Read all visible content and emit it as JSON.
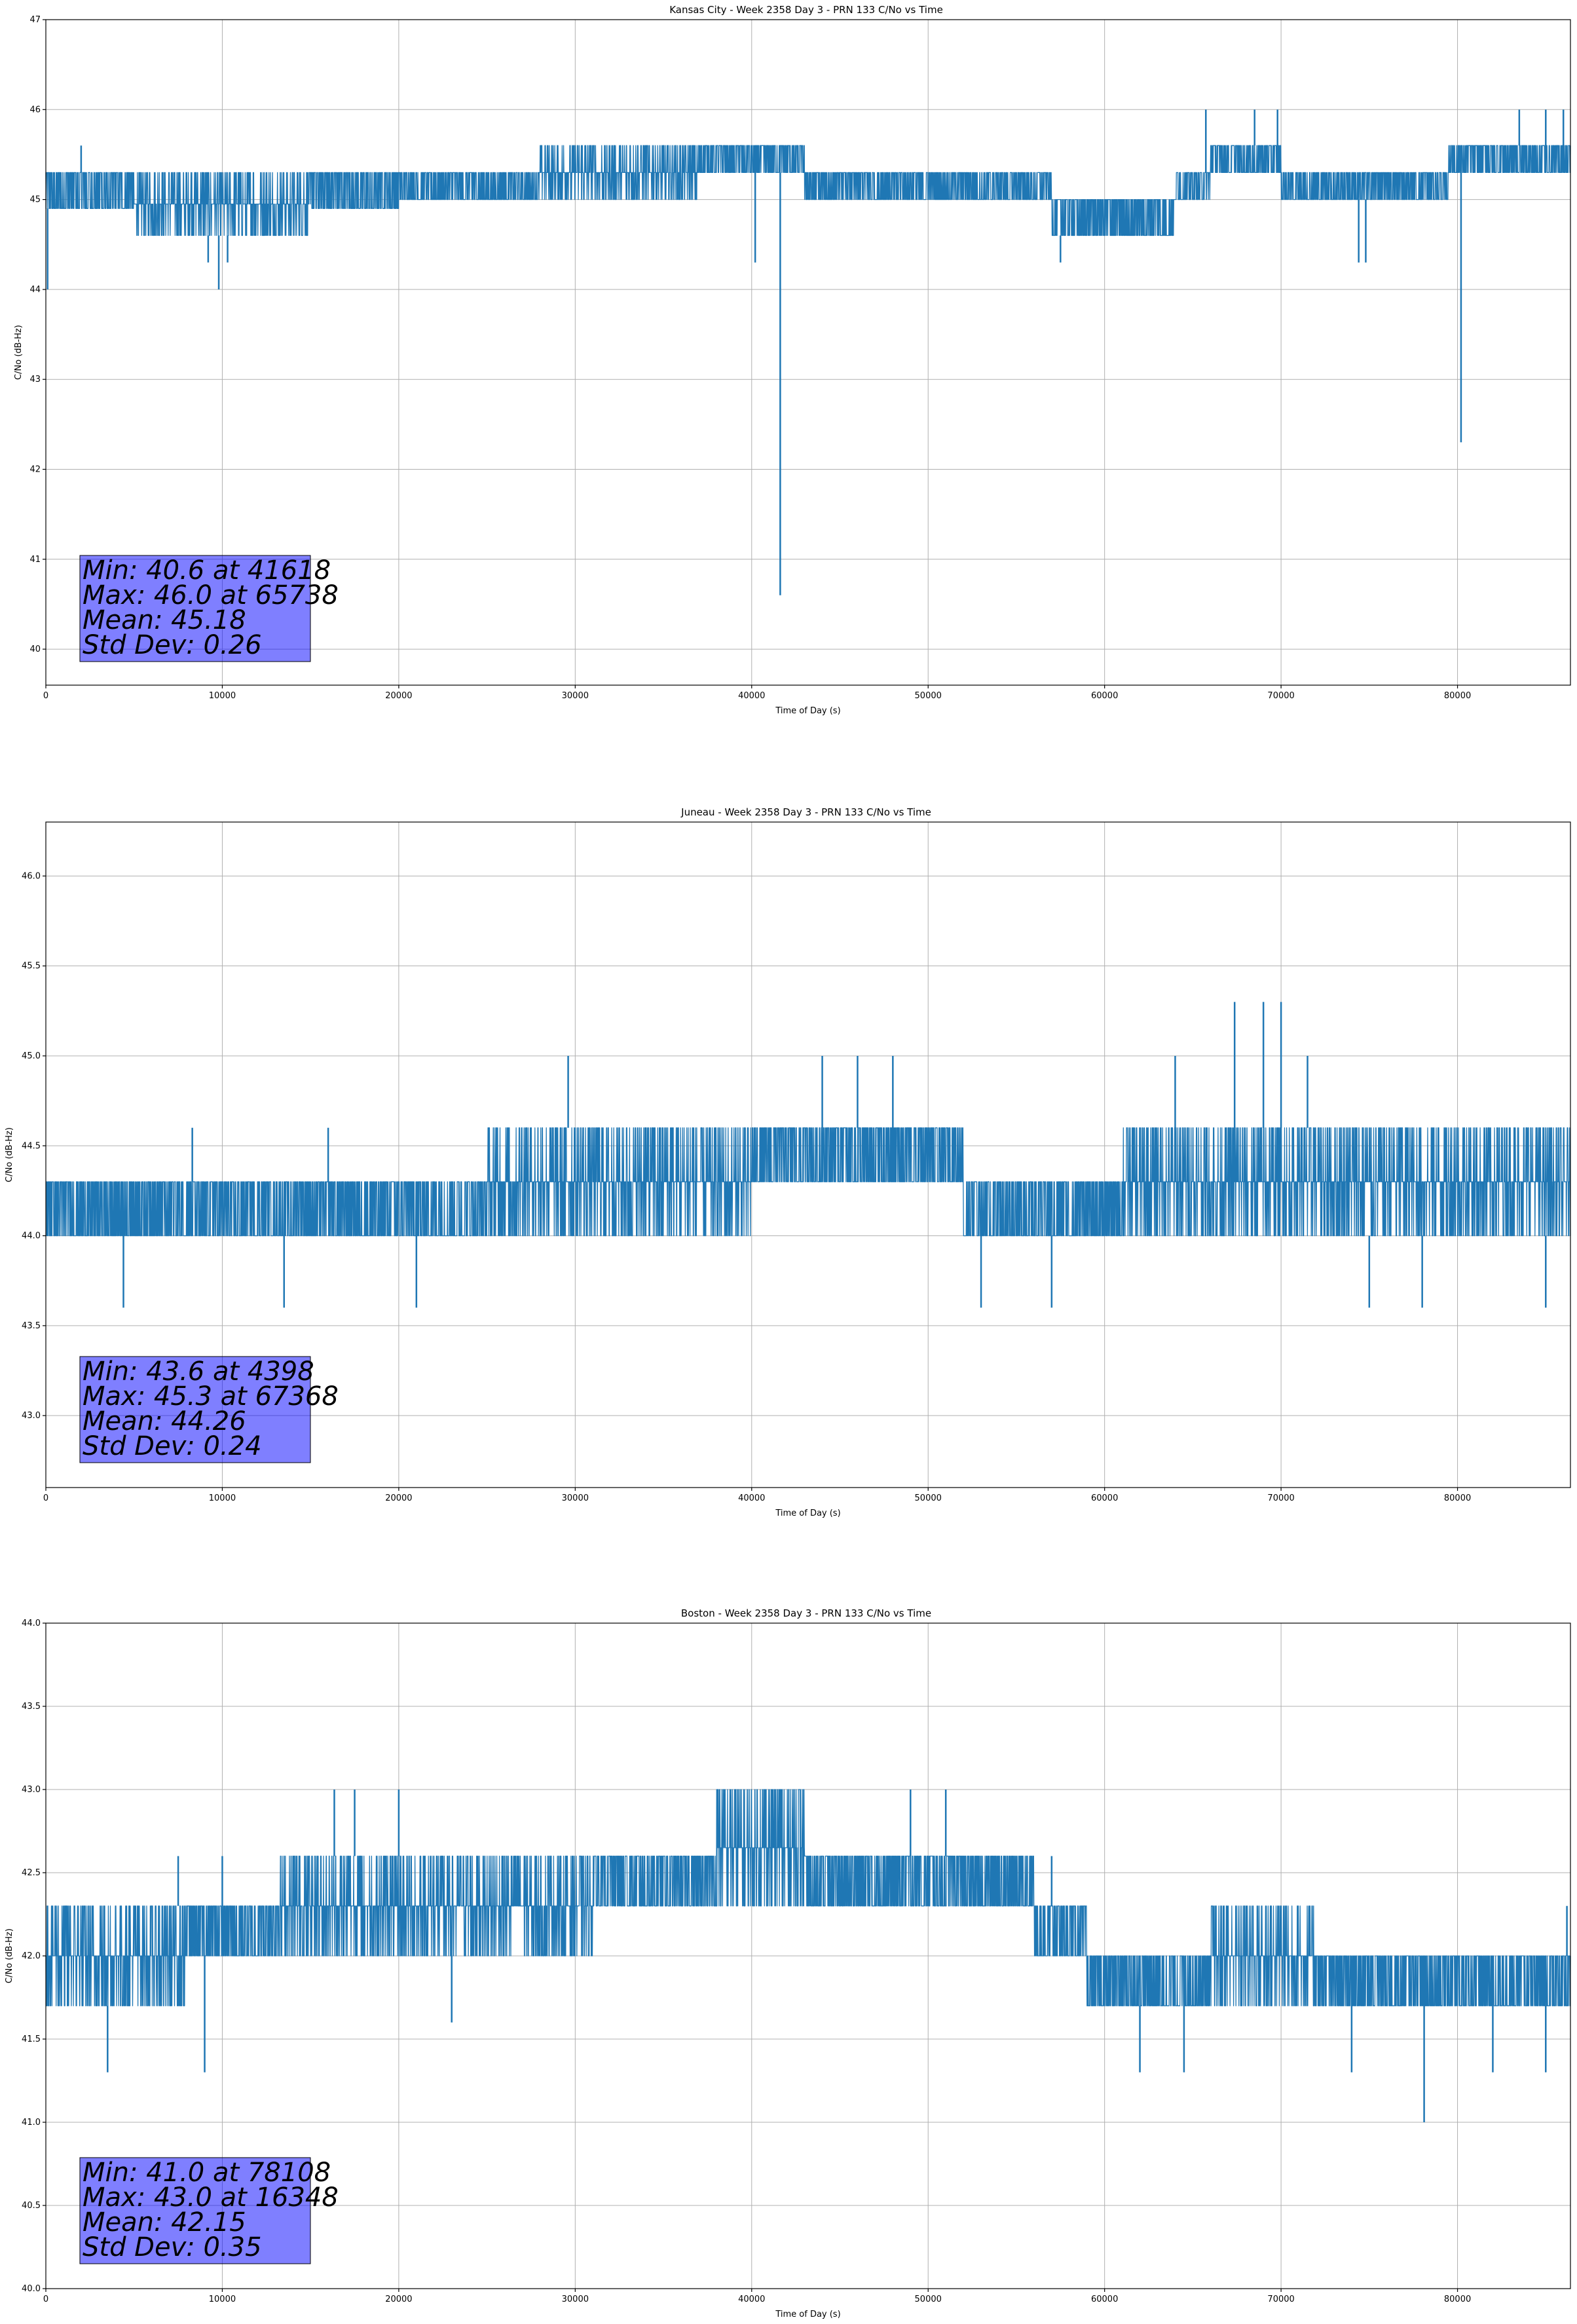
{
  "chart_data": [
    {
      "type": "line",
      "title": "Kansas City - Week 2358 Day 3 - PRN 133 C/No vs Time",
      "xlabel": "Time of Day (s)",
      "ylabel": "C/No (dB-Hz)",
      "xlim": [
        0,
        86400
      ],
      "ylim": [
        39.6,
        47.0
      ],
      "xticks": [
        0,
        10000,
        20000,
        30000,
        40000,
        50000,
        60000,
        70000,
        80000
      ],
      "xtick_labels": [
        "0",
        "10000",
        "20000",
        "30000",
        "40000",
        "50000",
        "60000",
        "70000",
        "80000"
      ],
      "yticks": [
        40,
        41,
        42,
        43,
        44,
        45,
        46,
        47
      ],
      "ytick_labels": [
        "40",
        "41",
        "42",
        "43",
        "44",
        "45",
        "46",
        "47"
      ],
      "grid": true,
      "series": [
        {
          "name": "PRN 133 C/No",
          "color": "#1f77b4",
          "quantization": 0.3,
          "band_segments": [
            {
              "x0": 0,
              "x1": 5000,
              "low": 44.9,
              "high": 45.3
            },
            {
              "x0": 5000,
              "x1": 15000,
              "low": 44.6,
              "high": 45.3
            },
            {
              "x0": 15000,
              "x1": 20000,
              "low": 44.9,
              "high": 45.3
            },
            {
              "x0": 20000,
              "x1": 28000,
              "low": 45.0,
              "high": 45.3
            },
            {
              "x0": 28000,
              "x1": 37000,
              "low": 45.0,
              "high": 45.6
            },
            {
              "x0": 37000,
              "x1": 43000,
              "low": 45.3,
              "high": 45.6
            },
            {
              "x0": 43000,
              "x1": 57000,
              "low": 45.0,
              "high": 45.3
            },
            {
              "x0": 57000,
              "x1": 64000,
              "low": 44.6,
              "high": 45.0
            },
            {
              "x0": 64000,
              "x1": 66000,
              "low": 45.0,
              "high": 45.3
            },
            {
              "x0": 66000,
              "x1": 70000,
              "low": 45.3,
              "high": 45.6
            },
            {
              "x0": 70000,
              "x1": 79500,
              "low": 45.0,
              "high": 45.3
            },
            {
              "x0": 79500,
              "x1": 86400,
              "low": 45.3,
              "high": 45.6
            }
          ],
          "spikes": [
            {
              "x": 100,
              "y": 44.0
            },
            {
              "x": 2000,
              "y": 45.6
            },
            {
              "x": 9200,
              "y": 44.3
            },
            {
              "x": 9800,
              "y": 44.0
            },
            {
              "x": 10300,
              "y": 44.3
            },
            {
              "x": 40200,
              "y": 44.3
            },
            {
              "x": 41618,
              "y": 40.6
            },
            {
              "x": 57500,
              "y": 44.3
            },
            {
              "x": 65738,
              "y": 46.0
            },
            {
              "x": 68500,
              "y": 46.0
            },
            {
              "x": 69800,
              "y": 46.0
            },
            {
              "x": 74400,
              "y": 44.3
            },
            {
              "x": 74800,
              "y": 44.3
            },
            {
              "x": 80200,
              "y": 42.3
            },
            {
              "x": 83500,
              "y": 46.0
            },
            {
              "x": 85000,
              "y": 46.0
            },
            {
              "x": 86000,
              "y": 46.0
            }
          ]
        }
      ],
      "stats": {
        "line1": "Min: 40.6 at 41618",
        "line2": "Max: 46.0 at 65738",
        "line3": "Mean: 45.18",
        "line4": "Std Dev: 0.26"
      }
    },
    {
      "type": "line",
      "title": "Juneau - Week 2358 Day 3 - PRN 133 C/No vs Time",
      "xlabel": "Time of Day (s)",
      "ylabel": "C/No (dB-Hz)",
      "xlim": [
        0,
        86400
      ],
      "ylim": [
        42.6,
        46.3
      ],
      "xticks": [
        0,
        10000,
        20000,
        30000,
        40000,
        50000,
        60000,
        70000,
        80000
      ],
      "xtick_labels": [
        "0",
        "10000",
        "20000",
        "30000",
        "40000",
        "50000",
        "60000",
        "70000",
        "80000"
      ],
      "yticks": [
        43.0,
        43.5,
        44.0,
        44.5,
        45.0,
        45.5,
        46.0
      ],
      "ytick_labels": [
        "43.0",
        "43.5",
        "44.0",
        "44.5",
        "45.0",
        "45.5",
        "46.0"
      ],
      "grid": true,
      "series": [
        {
          "name": "PRN 133 C/No",
          "color": "#1f77b4",
          "quantization": 0.3,
          "band_segments": [
            {
              "x0": 0,
              "x1": 25000,
              "low": 44.0,
              "high": 44.3
            },
            {
              "x0": 25000,
              "x1": 40000,
              "low": 44.0,
              "high": 44.6
            },
            {
              "x0": 40000,
              "x1": 52000,
              "low": 44.3,
              "high": 44.6
            },
            {
              "x0": 52000,
              "x1": 61000,
              "low": 44.0,
              "high": 44.3
            },
            {
              "x0": 61000,
              "x1": 73000,
              "low": 44.0,
              "high": 44.6
            },
            {
              "x0": 73000,
              "x1": 86400,
              "low": 44.0,
              "high": 44.6
            }
          ],
          "spikes": [
            {
              "x": 4398,
              "y": 43.6
            },
            {
              "x": 8300,
              "y": 44.6
            },
            {
              "x": 13500,
              "y": 43.6
            },
            {
              "x": 16000,
              "y": 44.6
            },
            {
              "x": 21000,
              "y": 43.6
            },
            {
              "x": 29600,
              "y": 45.0
            },
            {
              "x": 44000,
              "y": 45.0
            },
            {
              "x": 46000,
              "y": 45.0
            },
            {
              "x": 48000,
              "y": 45.0
            },
            {
              "x": 53000,
              "y": 43.6
            },
            {
              "x": 57000,
              "y": 43.6
            },
            {
              "x": 64000,
              "y": 45.0
            },
            {
              "x": 67368,
              "y": 45.3
            },
            {
              "x": 69000,
              "y": 45.3
            },
            {
              "x": 70000,
              "y": 45.3
            },
            {
              "x": 71500,
              "y": 45.0
            },
            {
              "x": 75000,
              "y": 43.6
            },
            {
              "x": 78000,
              "y": 43.6
            },
            {
              "x": 85000,
              "y": 43.6
            }
          ]
        }
      ],
      "stats": {
        "line1": "Min: 43.6 at 4398",
        "line2": "Max: 45.3 at 67368",
        "line3": "Mean: 44.26",
        "line4": "Std Dev: 0.24"
      }
    },
    {
      "type": "line",
      "title": "Boston - Week 2358 Day 3 - PRN 133 C/No vs Time",
      "xlabel": "Time of Day (s)",
      "ylabel": "C/No (dB-Hz)",
      "xlim": [
        0,
        86400
      ],
      "ylim": [
        40.0,
        44.0
      ],
      "xticks": [
        0,
        10000,
        20000,
        30000,
        40000,
        50000,
        60000,
        70000,
        80000
      ],
      "xtick_labels": [
        "0",
        "10000",
        "20000",
        "30000",
        "40000",
        "50000",
        "60000",
        "70000",
        "80000"
      ],
      "yticks": [
        40.0,
        40.5,
        41.0,
        41.5,
        42.0,
        42.5,
        43.0,
        43.5,
        44.0
      ],
      "ytick_labels": [
        "40.0",
        "40.5",
        "41.0",
        "41.5",
        "42.0",
        "42.5",
        "43.0",
        "43.5",
        "44.0"
      ],
      "grid": true,
      "series": [
        {
          "name": "PRN 133 C/No",
          "color": "#1f77b4",
          "quantization": 0.3,
          "band_segments": [
            {
              "x0": 0,
              "x1": 8000,
              "low": 41.7,
              "high": 42.3
            },
            {
              "x0": 8000,
              "x1": 13000,
              "low": 42.0,
              "high": 42.3
            },
            {
              "x0": 13000,
              "x1": 31000,
              "low": 42.0,
              "high": 42.6
            },
            {
              "x0": 31000,
              "x1": 38000,
              "low": 42.3,
              "high": 42.6
            },
            {
              "x0": 38000,
              "x1": 43000,
              "low": 42.3,
              "high": 43.0
            },
            {
              "x0": 43000,
              "x1": 56000,
              "low": 42.3,
              "high": 42.6
            },
            {
              "x0": 56000,
              "x1": 59000,
              "low": 42.0,
              "high": 42.3
            },
            {
              "x0": 59000,
              "x1": 66000,
              "low": 41.7,
              "high": 42.0
            },
            {
              "x0": 66000,
              "x1": 72000,
              "low": 41.7,
              "high": 42.3
            },
            {
              "x0": 72000,
              "x1": 86400,
              "low": 41.7,
              "high": 42.0
            }
          ],
          "spikes": [
            {
              "x": 3500,
              "y": 41.3
            },
            {
              "x": 7500,
              "y": 42.6
            },
            {
              "x": 9000,
              "y": 41.3
            },
            {
              "x": 10000,
              "y": 42.6
            },
            {
              "x": 16348,
              "y": 43.0
            },
            {
              "x": 17500,
              "y": 43.0
            },
            {
              "x": 20000,
              "y": 43.0
            },
            {
              "x": 23000,
              "y": 41.6
            },
            {
              "x": 49000,
              "y": 43.0
            },
            {
              "x": 51000,
              "y": 43.0
            },
            {
              "x": 57000,
              "y": 42.6
            },
            {
              "x": 62000,
              "y": 41.3
            },
            {
              "x": 64500,
              "y": 41.3
            },
            {
              "x": 74000,
              "y": 41.3
            },
            {
              "x": 78108,
              "y": 41.0
            },
            {
              "x": 82000,
              "y": 41.3
            },
            {
              "x": 85000,
              "y": 41.3
            },
            {
              "x": 86200,
              "y": 42.3
            }
          ]
        }
      ],
      "stats": {
        "line1": "Min: 41.0 at 78108",
        "line2": "Max: 43.0 at 16348",
        "line3": "Mean: 42.15",
        "line4": "Std Dev: 0.35"
      }
    }
  ]
}
